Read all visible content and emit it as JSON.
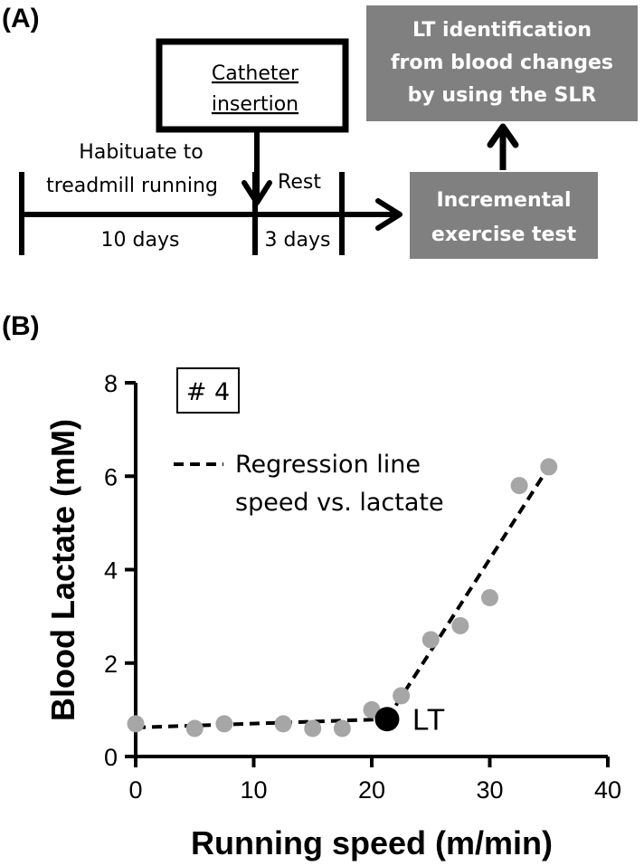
{
  "panel_a": {
    "label": "(A)",
    "catheter_line1": "Catheter",
    "catheter_line2": "insertion",
    "habituate_line1": "Habituate to",
    "habituate_line2": "treadmill running",
    "rest_label": "Rest",
    "days_10": "10 days",
    "days_3": "3 days",
    "lt_box_line1": "LT identification",
    "lt_box_line2": "from blood changes",
    "lt_box_line3": "by using the SLR",
    "incremental_line1": "Incremental",
    "incremental_line2": "exercise test",
    "box_color": "#808080"
  },
  "panel_b": {
    "label": "(B)",
    "subject_tag": "# 4",
    "lt_label": "LT"
  },
  "chart_data": {
    "type": "scatter",
    "title": "",
    "xlabel": "Running speed (m/min)",
    "ylabel": "Blood Lactate (mM)",
    "xlim": [
      0,
      40
    ],
    "ylim": [
      0,
      8
    ],
    "xticks": [
      0,
      10,
      20,
      30,
      40
    ],
    "yticks": [
      0,
      2,
      4,
      6,
      8
    ],
    "grid": false,
    "series": [
      {
        "name": "Blood lactate",
        "color": "#a6a6a6",
        "x": [
          0,
          5,
          7.5,
          12.5,
          15,
          17.5,
          20,
          22.5,
          25,
          27.5,
          30,
          32.5,
          35
        ],
        "y": [
          0.7,
          0.6,
          0.7,
          0.7,
          0.6,
          0.6,
          1.0,
          1.3,
          2.5,
          2.8,
          3.4,
          5.8,
          6.2
        ]
      }
    ],
    "regression_lines": [
      {
        "x": [
          0,
          21.3
        ],
        "y": [
          0.62,
          0.8
        ]
      },
      {
        "x": [
          21.3,
          35
        ],
        "y": [
          0.8,
          6.2
        ]
      }
    ],
    "legend": {
      "entries": [
        "Regression line",
        "speed vs. lactate"
      ],
      "placement": "top-left"
    },
    "lt_point": {
      "x": 21.3,
      "y": 0.8,
      "label": "LT"
    }
  }
}
